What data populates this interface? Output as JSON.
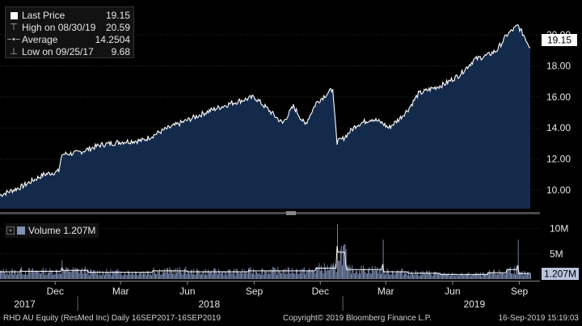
{
  "legend": {
    "last_label": "Last Price",
    "last_value": "19.15",
    "high_label": "High on 08/30/19",
    "high_value": "20.59",
    "avg_label": "Average",
    "avg_value": "14.2504",
    "low_label": "Low on 09/25/17",
    "low_value": "9.68"
  },
  "volume_legend": {
    "label": "Volume",
    "value": "1.207M"
  },
  "footer": {
    "security": "RHD AU Equity (ResMed Inc)  Daily 16SEP2017-16SEP2019",
    "copyright": "Copyright© 2019 Bloomberg Finance L.P.",
    "timestamp": "16-Sep-2019 15:19:03"
  },
  "colors": {
    "background": "#000000",
    "area_fill": "#132a4a",
    "price_line": "#ffffff",
    "volume_bars": "#7f8fb5",
    "last_tag": "#ffffff",
    "volume_tag": "#b9c4dd"
  },
  "chart_data": [
    {
      "type": "area",
      "series_name": "Last Price",
      "ylim": [
        8.8,
        21.2
      ],
      "y_ticks": [
        "10.00",
        "12.00",
        "14.00",
        "16.00",
        "18.00",
        "20.00"
      ],
      "y_tick_values": [
        10,
        12,
        14,
        16,
        18,
        20
      ],
      "last_value_label": "19.15",
      "x_tick_labels": [
        "Dec",
        "Mar",
        "Jun",
        "Sep",
        "Dec",
        "Mar",
        "Jun",
        "Sep"
      ],
      "year_labels": [
        "2017",
        "2018",
        "2019"
      ],
      "x": [
        "2017-09-16",
        "2017-10-15",
        "2017-11-15",
        "2017-12-06",
        "2017-12-10",
        "2018-01-01",
        "2018-02-01",
        "2018-03-01",
        "2018-04-01",
        "2018-05-01",
        "2018-06-01",
        "2018-07-01",
        "2018-08-01",
        "2018-09-01",
        "2018-09-20",
        "2018-10-10",
        "2018-10-25",
        "2018-11-10",
        "2018-11-25",
        "2018-12-10",
        "2018-12-18",
        "2018-12-24",
        "2019-01-01",
        "2019-01-20",
        "2019-02-10",
        "2019-02-25",
        "2019-03-05",
        "2019-03-20",
        "2019-04-01",
        "2019-04-15",
        "2019-05-01",
        "2019-05-20",
        "2019-06-10",
        "2019-07-01",
        "2019-07-20",
        "2019-08-01",
        "2019-08-15",
        "2019-08-30",
        "2019-09-08",
        "2019-09-16"
      ],
      "values": [
        9.68,
        10.2,
        11.0,
        11.2,
        12.3,
        12.4,
        12.9,
        13.1,
        13.2,
        13.9,
        14.5,
        15.1,
        15.6,
        16.0,
        15.2,
        14.3,
        15.4,
        14.2,
        15.6,
        16.2,
        16.5,
        13.1,
        13.3,
        14.2,
        14.6,
        14.3,
        14.0,
        14.6,
        15.2,
        16.2,
        16.5,
        16.8,
        17.4,
        18.4,
        18.7,
        19.0,
        20.0,
        20.59,
        19.9,
        19.15
      ]
    },
    {
      "type": "bar",
      "series_name": "Volume",
      "last_value_label": "1.207M",
      "ylim": [
        0,
        12
      ],
      "y_ticks": [
        "5M",
        "10M"
      ],
      "y_tick_values": [
        5,
        10
      ],
      "unit": "M",
      "x": [
        "2017-09-16",
        "2017-10-15",
        "2017-11-15",
        "2017-12-10",
        "2018-01-15",
        "2018-03-01",
        "2018-04-15",
        "2018-06-01",
        "2018-07-15",
        "2018-08-25",
        "2018-10-10",
        "2018-11-25",
        "2018-12-24",
        "2019-01-05",
        "2019-01-30",
        "2019-02-25",
        "2019-04-01",
        "2019-05-15",
        "2019-06-20",
        "2019-07-20",
        "2019-08-15",
        "2019-08-30",
        "2019-09-16"
      ],
      "values": [
        1.6,
        2.4,
        1.7,
        3.8,
        1.9,
        1.5,
        2.3,
        1.8,
        1.6,
        2.2,
        1.8,
        2.4,
        10.8,
        5.9,
        2.1,
        7.8,
        1.6,
        1.3,
        1.0,
        1.4,
        2.1,
        7.8,
        1.2
      ]
    }
  ]
}
